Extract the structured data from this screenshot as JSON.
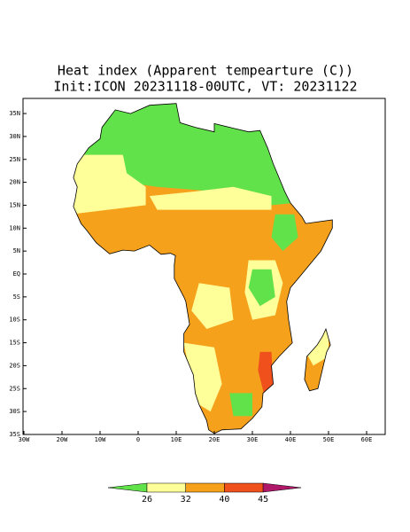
{
  "title": "Heat index (Apparent tempearture (C))",
  "subtitle": "Init:ICON 20231118-00UTC, VT: 20231122",
  "map": {
    "lat_labels": [
      "35N",
      "30N",
      "25N",
      "20N",
      "15N",
      "10N",
      "5N",
      "EQ",
      "5S",
      "10S",
      "15S",
      "20S",
      "25S",
      "30S",
      "35S"
    ],
    "lon_labels": [
      "30W",
      "20W",
      "10W",
      "0",
      "10E",
      "20E",
      "30E",
      "40E",
      "50E",
      "60E"
    ]
  },
  "colorbar": {
    "ticks": [
      26,
      32,
      40,
      45
    ],
    "colors": [
      "#62e24a",
      "#ffff99",
      "#f5a11c",
      "#f0501c",
      "#b0186a"
    ]
  }
}
